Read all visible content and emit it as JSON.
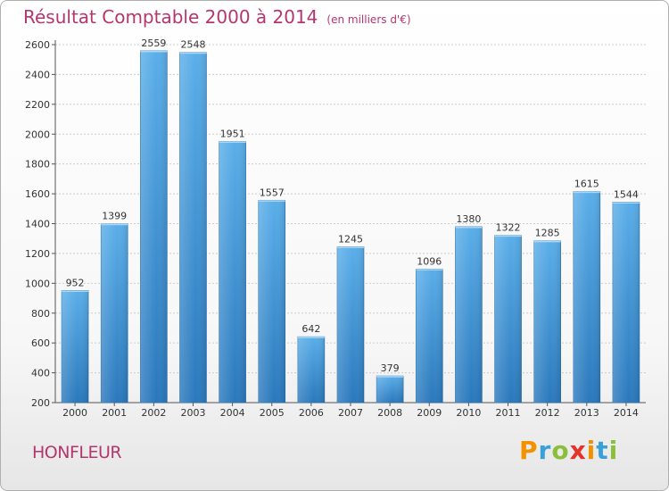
{
  "header": {
    "title": "Résultat Comptable 2000 à 2014",
    "subtitle": "(en milliers d'€)"
  },
  "footer": {
    "city": "HONFLEUR",
    "brand": [
      "P",
      "r",
      "o",
      "x",
      "i",
      "t",
      "i"
    ],
    "brand_colors": [
      "#f39200",
      "#3aa0d8",
      "#8bbe3a",
      "#e6332a",
      "#f39200",
      "#3aa0d8",
      "#8bbe3a"
    ]
  },
  "chart_data": {
    "type": "bar",
    "title": "Résultat Comptable 2000 à 2014",
    "subtitle": "(en milliers d'€)",
    "categories": [
      "2000",
      "2001",
      "2002",
      "2003",
      "2004",
      "2005",
      "2006",
      "2007",
      "2008",
      "2009",
      "2010",
      "2011",
      "2012",
      "2013",
      "2014"
    ],
    "values": [
      952,
      1399,
      2559,
      2548,
      1951,
      1557,
      642,
      1245,
      379,
      1096,
      1380,
      1322,
      1285,
      1615,
      1544
    ],
    "ylim": [
      200,
      2600
    ],
    "yticks": [
      200,
      400,
      600,
      800,
      1000,
      1200,
      1400,
      1600,
      1800,
      2000,
      2200,
      2400,
      2600
    ],
    "grid": true,
    "xlabel": "",
    "ylabel": "",
    "colors": {
      "bar_light": "#5aaee9",
      "bar_dark": "#2a78bc",
      "grid": "#cccccc",
      "text": "#333333"
    }
  }
}
